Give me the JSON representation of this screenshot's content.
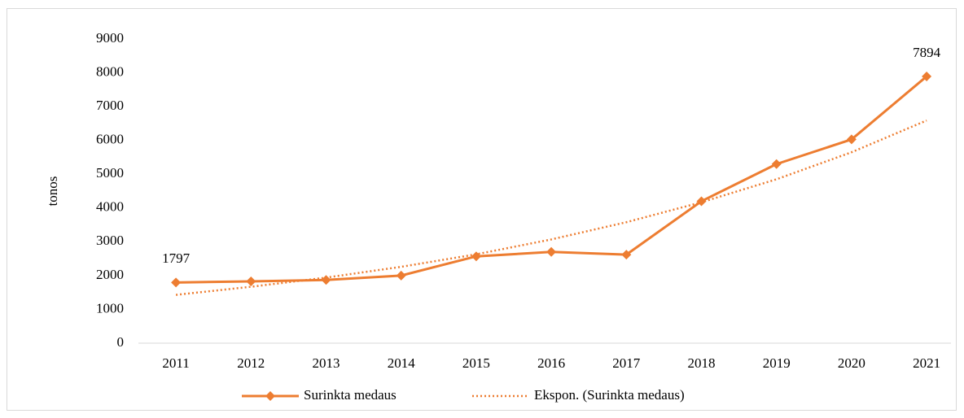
{
  "chart_data": {
    "type": "line",
    "y_label": "tonos",
    "categories": [
      "2011",
      "2012",
      "2013",
      "2014",
      "2015",
      "2016",
      "2017",
      "2018",
      "2019",
      "2020",
      "2021"
    ],
    "series": [
      {
        "name": "Surinkta medaus",
        "color": "#ed7d31",
        "style": "solid",
        "marker": "diamond",
        "values": [
          1797,
          1830,
          1870,
          2000,
          2570,
          2700,
          2620,
          4200,
          5300,
          6030,
          7894
        ],
        "value_labels": [
          "1797",
          null,
          null,
          null,
          null,
          null,
          null,
          null,
          null,
          null,
          "7894"
        ]
      },
      {
        "name": "Ekspon. (Surinkta medaus)",
        "color": "#ed7d31",
        "style": "dotted",
        "marker": null,
        "values": [
          1430,
          1670,
          1940,
          2260,
          2630,
          3070,
          3580,
          4170,
          4850,
          5650,
          6590
        ]
      }
    ],
    "ylim": [
      0,
      9000
    ],
    "yticks": [
      0,
      1000,
      2000,
      3000,
      4000,
      5000,
      6000,
      7000,
      8000,
      9000
    ],
    "grid": false,
    "legend": "bottom"
  }
}
